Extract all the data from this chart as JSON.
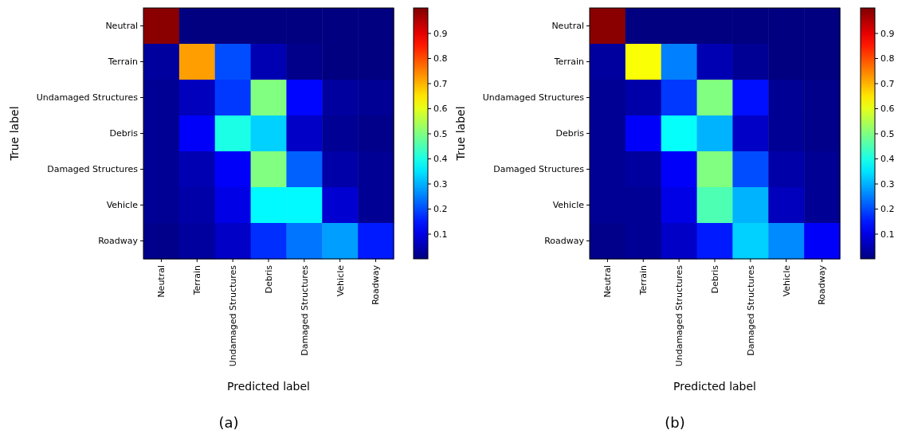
{
  "chart_data": [
    {
      "type": "heatmap",
      "xlabel": "Predicted label",
      "ylabel": "True label",
      "annotations": [
        "(a)"
      ],
      "categories": [
        "Neutral",
        "Terrain",
        "Undamaged Structures",
        "Debris",
        "Damaged Structures",
        "Vehicle",
        "Roadway"
      ],
      "y_categories": [
        "Neutral",
        "Terrain",
        "Undamaged Structures",
        "Debris",
        "Damaged Structures",
        "Vehicle",
        "Roadway"
      ],
      "cells": [
        [
          0.99,
          0,
          0,
          0,
          0,
          0,
          0
        ],
        [
          0.03,
          0.72,
          0.2,
          0.05,
          0.01,
          0,
          0
        ],
        [
          0.02,
          0.06,
          0.18,
          0.5,
          0.13,
          0.03,
          0.02
        ],
        [
          0.02,
          0.12,
          0.4,
          0.33,
          0.07,
          0.02,
          0.01
        ],
        [
          0.02,
          0.05,
          0.12,
          0.5,
          0.22,
          0.04,
          0.02
        ],
        [
          0.02,
          0.04,
          0.1,
          0.37,
          0.37,
          0.08,
          0.02
        ],
        [
          0.01,
          0.03,
          0.07,
          0.17,
          0.24,
          0.28,
          0.15
        ]
      ],
      "clim": [
        0,
        1
      ],
      "cticks": [
        0.1,
        0.2,
        0.3,
        0.4,
        0.5,
        0.6,
        0.7,
        0.8,
        0.9
      ]
    },
    {
      "type": "heatmap",
      "xlabel": "Predicted label",
      "ylabel": "True label",
      "annotations": [
        "(b)"
      ],
      "categories": [
        "Neutral",
        "Terrain",
        "Undamaged Structures",
        "Debris",
        "Damaged Structures",
        "Vehicle",
        "Roadway"
      ],
      "y_categories": [
        "Neutral",
        "Terrain",
        "Undamaged Structures",
        "Debris",
        "Damaged Structures",
        "Vehicle",
        "Roadway"
      ],
      "cells": [
        [
          0.99,
          0,
          0,
          0,
          0,
          0,
          0
        ],
        [
          0.03,
          0.62,
          0.25,
          0.05,
          0.02,
          0,
          0
        ],
        [
          0.02,
          0.04,
          0.18,
          0.5,
          0.14,
          0.02,
          0.01
        ],
        [
          0.02,
          0.12,
          0.38,
          0.3,
          0.07,
          0.02,
          0.01
        ],
        [
          0.02,
          0.03,
          0.12,
          0.5,
          0.2,
          0.04,
          0.02
        ],
        [
          0.02,
          0.02,
          0.1,
          0.45,
          0.3,
          0.06,
          0.02
        ],
        [
          0.01,
          0.02,
          0.07,
          0.15,
          0.33,
          0.26,
          0.12
        ]
      ],
      "clim": [
        0,
        1
      ],
      "cticks": [
        0.1,
        0.2,
        0.3,
        0.4,
        0.5,
        0.6,
        0.7,
        0.8,
        0.9
      ]
    }
  ]
}
